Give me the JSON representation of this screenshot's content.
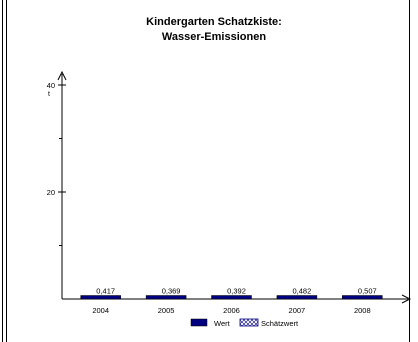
{
  "chart_data": {
    "type": "bar",
    "title": [
      "Kindergarten Schatzkiste:",
      "Wasser-Emissionen"
    ],
    "categories": [
      "2004",
      "2005",
      "2006",
      "2007",
      "2008"
    ],
    "series": [
      {
        "name": "Wert",
        "values": [
          0.417,
          0.369,
          0.392,
          0.482,
          0.507
        ]
      },
      {
        "name": "Schätzwert",
        "values": [
          0,
          0,
          0,
          0,
          0
        ]
      }
    ],
    "data_labels": [
      "0,417",
      "0,369",
      "0,392",
      "0,482",
      "0,507"
    ],
    "y_unit": "t",
    "ylim": [
      0,
      40
    ],
    "yticks_labeled": [
      20,
      40
    ],
    "yticks_minor": [
      10,
      30
    ],
    "legend_position": "bottom",
    "colors": {
      "bar_fill": "#000080",
      "axis": "#000000"
    }
  }
}
